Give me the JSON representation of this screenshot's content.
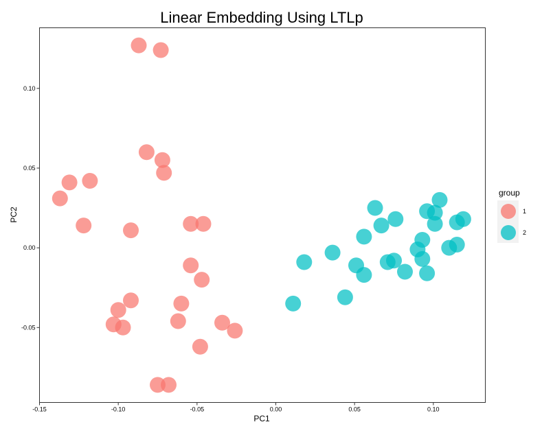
{
  "chart_data": {
    "type": "scatter",
    "title": "Linear Embedding Using LTLp",
    "xlabel": "PC1",
    "ylabel": "PC2",
    "xlim": [
      -0.15,
      0.133
    ],
    "ylim": [
      -0.097,
      0.138
    ],
    "xticks": [
      -0.15,
      -0.1,
      -0.05,
      0.0,
      0.05,
      0.1
    ],
    "xtick_labels": [
      "-0.15",
      "-0.10",
      "-0.05",
      "0.00",
      "0.05",
      "0.10"
    ],
    "yticks": [
      -0.05,
      0.0,
      0.05,
      0.1
    ],
    "ytick_labels": [
      "-0.05",
      "0.00",
      "0.05",
      "0.10"
    ],
    "grid": false,
    "legend": {
      "title": "group",
      "position": "right"
    },
    "series": [
      {
        "name": "1",
        "color": "#F8766D",
        "points": [
          [
            -0.087,
            0.127
          ],
          [
            -0.073,
            0.124
          ],
          [
            -0.082,
            0.06
          ],
          [
            -0.072,
            0.055
          ],
          [
            -0.071,
            0.047
          ],
          [
            -0.131,
            0.041
          ],
          [
            -0.118,
            0.042
          ],
          [
            -0.137,
            0.031
          ],
          [
            -0.122,
            0.014
          ],
          [
            -0.092,
            0.011
          ],
          [
            -0.054,
            0.015
          ],
          [
            -0.046,
            0.015
          ],
          [
            -0.054,
            -0.011
          ],
          [
            -0.047,
            -0.02
          ],
          [
            -0.092,
            -0.033
          ],
          [
            -0.1,
            -0.039
          ],
          [
            -0.103,
            -0.048
          ],
          [
            -0.097,
            -0.05
          ],
          [
            -0.06,
            -0.035
          ],
          [
            -0.062,
            -0.046
          ],
          [
            -0.034,
            -0.047
          ],
          [
            -0.026,
            -0.052
          ],
          [
            -0.048,
            -0.062
          ],
          [
            -0.075,
            -0.086
          ],
          [
            -0.068,
            -0.086
          ]
        ]
      },
      {
        "name": "2",
        "color": "#00BFC4",
        "points": [
          [
            0.011,
            -0.035
          ],
          [
            0.044,
            -0.031
          ],
          [
            0.018,
            -0.009
          ],
          [
            0.036,
            -0.003
          ],
          [
            0.051,
            -0.011
          ],
          [
            0.056,
            -0.017
          ],
          [
            0.056,
            0.007
          ],
          [
            0.063,
            0.025
          ],
          [
            0.067,
            0.014
          ],
          [
            0.076,
            0.018
          ],
          [
            0.071,
            -0.009
          ],
          [
            0.075,
            -0.008
          ],
          [
            0.082,
            -0.015
          ],
          [
            0.09,
            -0.001
          ],
          [
            0.093,
            -0.007
          ],
          [
            0.096,
            -0.016
          ],
          [
            0.093,
            0.005
          ],
          [
            0.096,
            0.023
          ],
          [
            0.101,
            0.022
          ],
          [
            0.101,
            0.015
          ],
          [
            0.104,
            0.03
          ],
          [
            0.11,
            0.0
          ],
          [
            0.115,
            0.002
          ],
          [
            0.115,
            0.016
          ],
          [
            0.119,
            0.018
          ]
        ]
      }
    ]
  }
}
